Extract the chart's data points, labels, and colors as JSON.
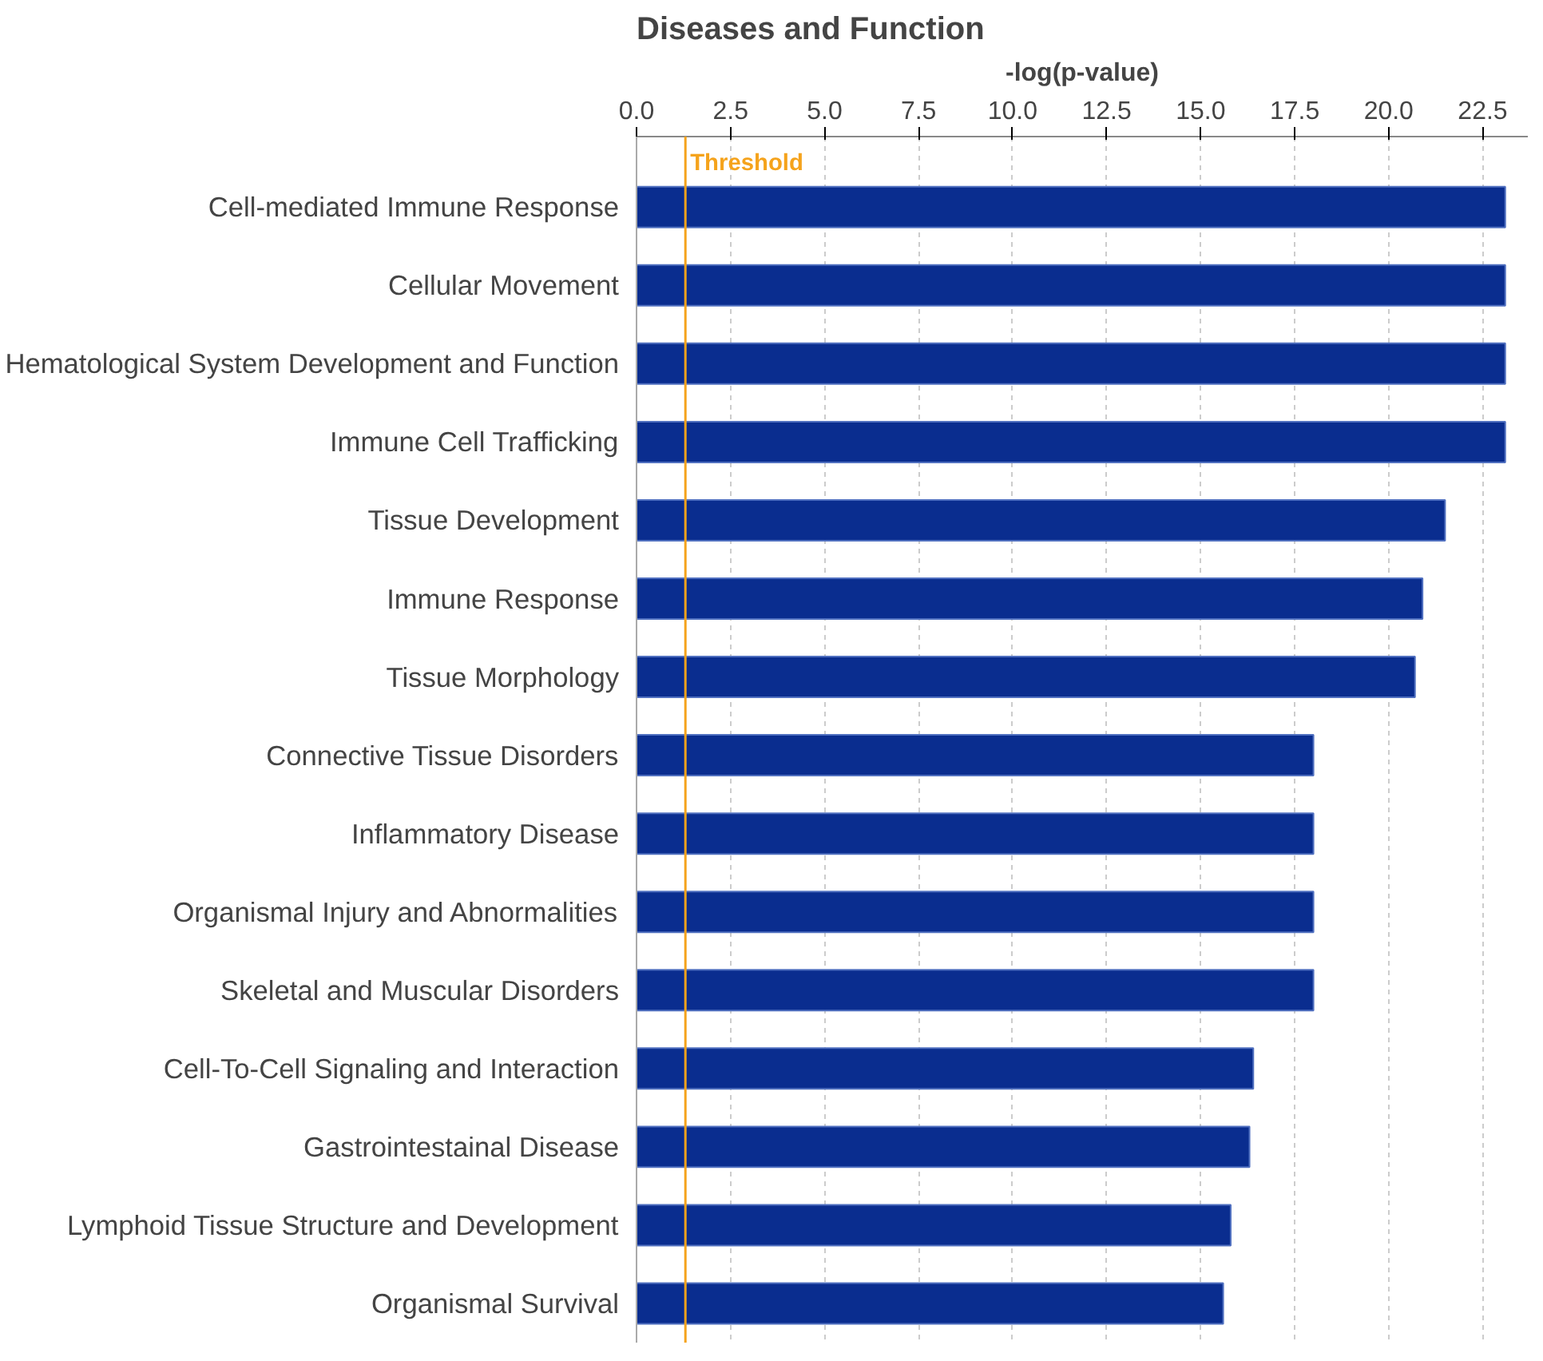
{
  "chart_data": {
    "type": "bar",
    "orientation": "horizontal",
    "title": "Diseases and Function",
    "xlabel": "-log(p-value)",
    "categories": [
      "Cell-mediated Immune Response",
      "Cellular Movement",
      "Hematological System Development and Function",
      "Immune Cell Trafficking",
      "Tissue Development",
      "Immune Response",
      "Tissue Morphology",
      "Connective Tissue Disorders",
      "Inflammatory Disease",
      "Organismal Injury and Abnormalities",
      "Skeletal and Muscular Disorders",
      "Cell-To-Cell Signaling and Interaction",
      "Gastrointestainal Disease",
      "Lymphoid Tissue Structure and Development",
      "Organismal Survival"
    ],
    "values": [
      23.1,
      23.1,
      23.1,
      23.1,
      21.5,
      20.9,
      20.7,
      18.0,
      18.0,
      18.0,
      18.0,
      16.4,
      16.3,
      15.8,
      15.6
    ],
    "color": "#0a2d8f",
    "xlim": [
      0,
      23.7
    ],
    "xticks": [
      {
        "value": 0,
        "label": "0.0"
      },
      {
        "value": 2.5,
        "label": "2.5"
      },
      {
        "value": 5,
        "label": "5.0"
      },
      {
        "value": 7.5,
        "label": "7.5"
      },
      {
        "value": 10,
        "label": "10.0"
      },
      {
        "value": 12.5,
        "label": "12.5"
      },
      {
        "value": 15,
        "label": "15.0"
      },
      {
        "value": 17.5,
        "label": "17.5"
      },
      {
        "value": 20,
        "label": "20.0"
      },
      {
        "value": 22.5,
        "label": "22.5"
      }
    ],
    "grid": "x",
    "ref_lines": [
      {
        "axis": "x",
        "value": 1.3,
        "label": "Threshold",
        "color": "#f5a31c"
      }
    ]
  }
}
